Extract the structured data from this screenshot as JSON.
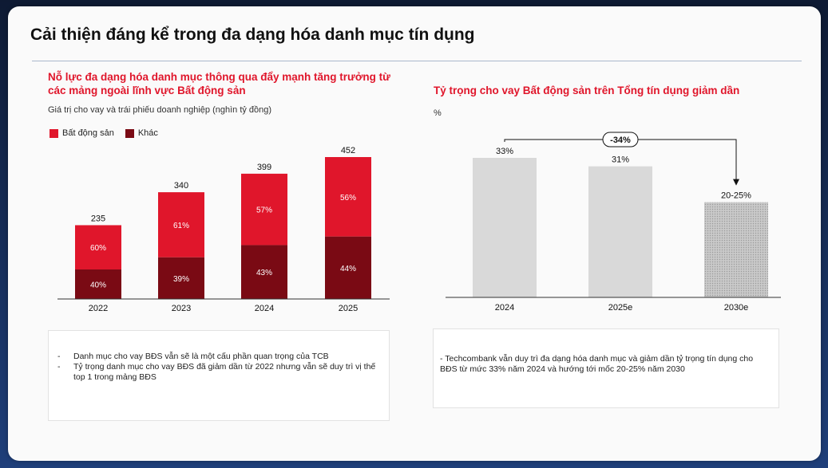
{
  "slide": {
    "title": "Cải thiện đáng kể trong đa dạng hóa danh mục tín dụng"
  },
  "left_panel": {
    "heading": "Nỗ lực đa dạng hóa danh mục thông qua đẩy mạnh tăng trưởng từ các mảng ngoài lĩnh vực Bất động sản",
    "subtitle": "Giá trị cho vay và trái phiếu doanh nghiệp (nghìn tỷ đồng)",
    "notes": [
      "Danh mục cho vay BĐS vẫn sẽ là một cấu phần quan trọng của TCB",
      "Tỷ trọng danh mục cho vay BĐS đã giảm dần từ 2022 nhưng vẫn sẽ duy trì vị thế top 1 trong mảng BĐS"
    ],
    "note_bullet": "-"
  },
  "right_panel": {
    "heading": "Tỷ trọng cho vay Bất động sản trên Tổng tín dụng giảm dần",
    "unit": "%",
    "note": "- Techcombank vẫn duy trì đa dạng hóa danh mục và giảm dần tỷ trọng tín dụng cho BĐS từ mức 33% năm 2024 và hướng tới mốc 20-25% năm 2030"
  },
  "chart_data": [
    {
      "type": "bar",
      "stacked": true,
      "categories": [
        "2022",
        "2023",
        "2024",
        "2025"
      ],
      "totals": [
        235,
        340,
        399,
        452
      ],
      "total_labels": [
        "235",
        "340",
        "399",
        "452"
      ],
      "series": [
        {
          "name": "Bất động sản",
          "share_labels": [
            "60%",
            "61%",
            "57%",
            "56%"
          ],
          "shares": [
            0.6,
            0.61,
            0.57,
            0.56
          ],
          "color": "#e0162b"
        },
        {
          "name": "Khác",
          "share_labels": [
            "40%",
            "39%",
            "43%",
            "44%"
          ],
          "shares": [
            0.4,
            0.39,
            0.43,
            0.44
          ],
          "color": "#7a0a14"
        }
      ],
      "legend": "top-left",
      "ylim": [
        0,
        452
      ],
      "grid": false
    },
    {
      "type": "bar",
      "categories": [
        "2024",
        "2025e",
        "2030e"
      ],
      "values": [
        33,
        31,
        22.5
      ],
      "value_labels": [
        "33%",
        "31%",
        "20-25%"
      ],
      "colors": [
        "#d9d9d9",
        "#d9d9d9",
        "#bdbdbd"
      ],
      "third_bar_pattern": "dotted",
      "annotation": "-34%",
      "ylim": [
        0,
        33
      ],
      "grid": false
    }
  ]
}
